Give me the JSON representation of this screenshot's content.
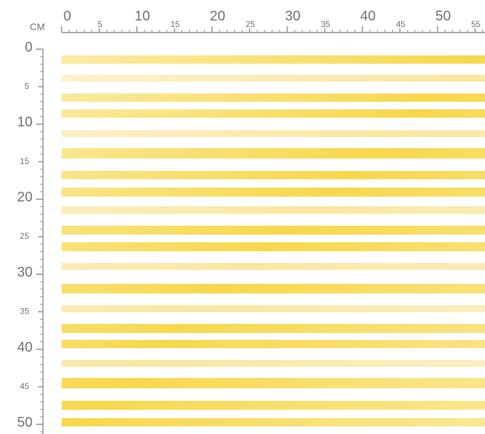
{
  "ruler": {
    "unit": "CM",
    "x_labels": [
      0,
      5,
      10,
      15,
      20,
      25,
      30,
      35,
      40,
      45,
      50,
      55
    ],
    "y_labels": [
      0,
      5,
      10,
      15,
      20,
      25,
      30,
      35,
      40,
      45,
      50
    ]
  }
}
